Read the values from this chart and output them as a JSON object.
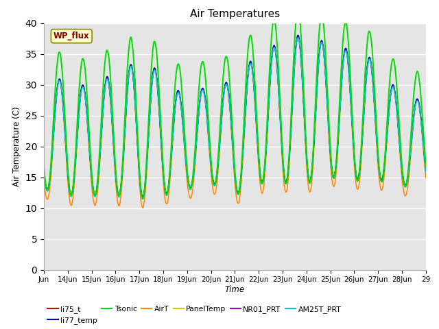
{
  "title": "Air Temperatures",
  "xlabel": "Time",
  "ylabel": "Air Temperature (C)",
  "ylim": [
    0,
    40
  ],
  "yticks": [
    0,
    5,
    10,
    15,
    20,
    25,
    30,
    35,
    40
  ],
  "x_tick_positions": [
    13,
    14,
    15,
    16,
    17,
    18,
    19,
    20,
    21,
    22,
    23,
    24,
    25,
    26,
    27,
    28,
    29
  ],
  "x_tick_labels": [
    "Jun",
    "14Jun",
    "15Jun",
    "16Jun",
    "17Jun",
    "18Jun",
    "19Jun",
    "20Jun",
    "21Jun",
    "22Jun",
    "23Jun",
    "24Jun",
    "25Jun",
    "26Jun",
    "27Jun",
    "28Jun",
    "29"
  ],
  "series_colors": {
    "li75_t": "#cc0000",
    "li77_temp": "#0000cc",
    "Tsonic": "#00dd00",
    "AirT": "#ff8800",
    "PanelTemp": "#cccc00",
    "NR01_PRT": "#9900cc",
    "AM25T_PRT": "#00cccc"
  },
  "legend_label": "WP_flux",
  "bg_color": "#e5e5e5",
  "day_peaks": [
    28.5,
    32.0,
    28.5,
    32.5,
    33.5,
    32.0,
    27.0,
    30.5,
    30.0,
    35.5,
    36.5,
    38.5,
    36.0,
    35.5,
    33.5,
    27.5
  ],
  "day_mins": [
    13.0,
    12.0,
    12.0,
    12.0,
    11.5,
    12.0,
    13.0,
    14.0,
    12.0,
    14.0,
    14.0,
    14.0,
    15.0,
    14.5,
    14.5,
    13.5
  ],
  "tsonic_extra": 4.5,
  "airt_low_extra": 1.5
}
